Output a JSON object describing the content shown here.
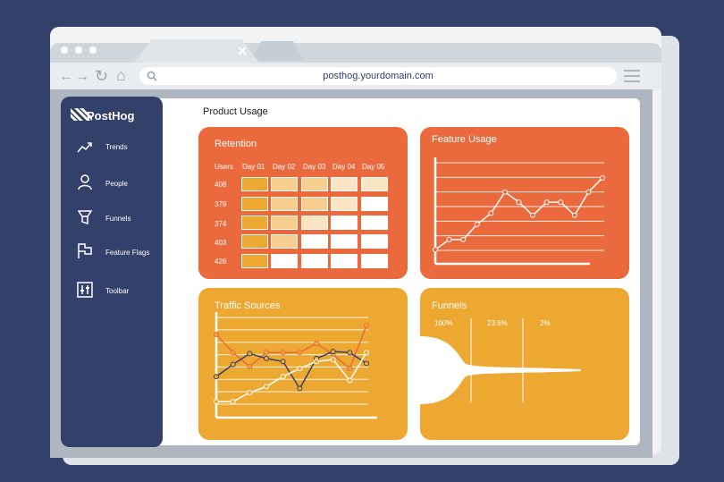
{
  "browser": {
    "url": "posthog.yourdomain.com",
    "tab_close": "×",
    "nav": {
      "back": "←",
      "forward": "→",
      "reload": "↻",
      "home": "⌂"
    },
    "icons": [
      "search-icon",
      "menu-icon"
    ]
  },
  "sidebar": {
    "logo": "PostHog",
    "items": [
      {
        "label": "Trends",
        "icon": "trend-line-icon"
      },
      {
        "label": "People",
        "icon": "person-icon"
      },
      {
        "label": "Funnels",
        "icon": "funnel-icon"
      },
      {
        "label": "Feature Flags",
        "icon": "flag-icon"
      },
      {
        "label": "Toolbar",
        "icon": "toolbar-icon"
      }
    ]
  },
  "main": {
    "title": "Product Usage",
    "retention": {
      "title": "Retention",
      "headers": [
        "Users",
        "Day 01",
        "Day 02",
        "Day 03",
        "Day 04",
        "Day 05"
      ],
      "users": [
        "408",
        "379",
        "374",
        "403",
        "426"
      ],
      "levels": [
        [
          3,
          2,
          2,
          1,
          1
        ],
        [
          3,
          2,
          2,
          1,
          0
        ],
        [
          3,
          2,
          1,
          0,
          0
        ],
        [
          3,
          2,
          0,
          0,
          0
        ],
        [
          3,
          0,
          0,
          0,
          0
        ]
      ]
    },
    "feature_usage": {
      "title": "Feature Usage",
      "chart_data": {
        "type": "line",
        "title": "Feature Usage",
        "series": [
          {
            "values": [
              1.4,
              2.4,
              2.4,
              3.9,
              5,
              7.1,
              6.1,
              4.8,
              6.1,
              6.1,
              4.8,
              7.1,
              8.5
            ]
          }
        ],
        "ylim": [
          0,
          10
        ]
      }
    },
    "traffic_sources": {
      "title": "Traffic Sources",
      "chart_data": {
        "type": "line",
        "title": "Traffic Sources",
        "series": [
          {
            "color": "#ea6a3e",
            "values": [
              8.3,
              6.5,
              5.1,
              6.5,
              6.5,
              6.5,
              7.4,
              6.3,
              4.9,
              9.2
            ]
          },
          {
            "color": "#334069",
            "values": [
              4.1,
              5.3,
              6.4,
              5.9,
              5.6,
              2.9,
              5.9,
              6.6,
              6.5,
              5.4
            ]
          },
          {
            "color": "#ffffff",
            "values": [
              1.6,
              1.6,
              2.5,
              3.1,
              4.1,
              4.9,
              5.6,
              5.8,
              3.7,
              6.5
            ]
          }
        ],
        "ylim": [
          0,
          10
        ]
      }
    },
    "funnels": {
      "title": "Funnels",
      "chart_data": {
        "type": "area",
        "categories": [
          "100%",
          "23.6%",
          "2%"
        ],
        "values": [
          100,
          23.6,
          2
        ]
      }
    }
  },
  "colors": {
    "page_bg": "#334069",
    "sidebar": "#334069",
    "orange": "#ea6a3e",
    "amber": "#eda831",
    "heat": [
      "#ffffff",
      "#fbe4c2",
      "#f6cf8e",
      "#eda831"
    ]
  }
}
